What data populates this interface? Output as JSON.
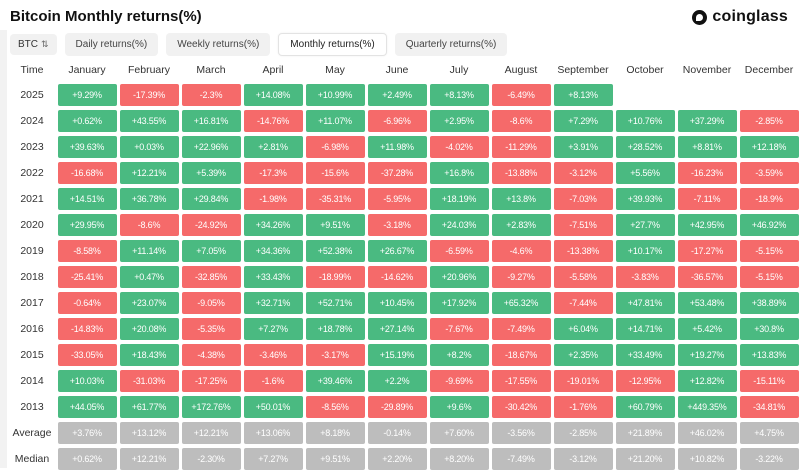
{
  "header": {
    "title": "Bitcoin Monthly returns(%)",
    "brand": "coinglass"
  },
  "toolbar": {
    "coin_selector": {
      "label": "BTC",
      "sort_icon": "swap-vertical-icon"
    },
    "tabs": [
      {
        "label": "Daily returns(%)",
        "active": false
      },
      {
        "label": "Weekly returns(%)",
        "active": false
      },
      {
        "label": "Monthly returns(%)",
        "active": true
      },
      {
        "label": "Quarterly returns(%)",
        "active": false
      }
    ]
  },
  "chart_data": {
    "type": "heatmap",
    "title": "Bitcoin Monthly returns(%)",
    "columns": [
      "Time",
      "January",
      "February",
      "March",
      "April",
      "May",
      "June",
      "July",
      "August",
      "September",
      "October",
      "November",
      "December"
    ],
    "colors": {
      "positive": "#4aba81",
      "negative": "#f56a6a",
      "summary": "#bdbdbd"
    },
    "rows": [
      {
        "label": "2025",
        "summary": false,
        "values": [
          "+9.29%",
          "-17.39%",
          "-2.3%",
          "+14.08%",
          "+10.99%",
          "+2.49%",
          "+8.13%",
          "-6.49%",
          "+8.13%",
          "",
          "",
          ""
        ]
      },
      {
        "label": "2024",
        "summary": false,
        "values": [
          "+0.62%",
          "+43.55%",
          "+16.81%",
          "-14.76%",
          "+11.07%",
          "-6.96%",
          "+2.95%",
          "-8.6%",
          "+7.29%",
          "+10.76%",
          "+37.29%",
          "-2.85%"
        ]
      },
      {
        "label": "2023",
        "summary": false,
        "values": [
          "+39.63%",
          "+0.03%",
          "+22.96%",
          "+2.81%",
          "-6.98%",
          "+11.98%",
          "-4.02%",
          "-11.29%",
          "+3.91%",
          "+28.52%",
          "+8.81%",
          "+12.18%"
        ]
      },
      {
        "label": "2022",
        "summary": false,
        "values": [
          "-16.68%",
          "+12.21%",
          "+5.39%",
          "-17.3%",
          "-15.6%",
          "-37.28%",
          "+16.8%",
          "-13.88%",
          "-3.12%",
          "+5.56%",
          "-16.23%",
          "-3.59%"
        ]
      },
      {
        "label": "2021",
        "summary": false,
        "values": [
          "+14.51%",
          "+36.78%",
          "+29.84%",
          "-1.98%",
          "-35.31%",
          "-5.95%",
          "+18.19%",
          "+13.8%",
          "-7.03%",
          "+39.93%",
          "-7.11%",
          "-18.9%"
        ]
      },
      {
        "label": "2020",
        "summary": false,
        "values": [
          "+29.95%",
          "-8.6%",
          "-24.92%",
          "+34.26%",
          "+9.51%",
          "-3.18%",
          "+24.03%",
          "+2.83%",
          "-7.51%",
          "+27.7%",
          "+42.95%",
          "+46.92%"
        ]
      },
      {
        "label": "2019",
        "summary": false,
        "values": [
          "-8.58%",
          "+11.14%",
          "+7.05%",
          "+34.36%",
          "+52.38%",
          "+26.67%",
          "-6.59%",
          "-4.6%",
          "-13.38%",
          "+10.17%",
          "-17.27%",
          "-5.15%"
        ]
      },
      {
        "label": "2018",
        "summary": false,
        "values": [
          "-25.41%",
          "+0.47%",
          "-32.85%",
          "+33.43%",
          "-18.99%",
          "-14.62%",
          "+20.96%",
          "-9.27%",
          "-5.58%",
          "-3.83%",
          "-36.57%",
          "-5.15%"
        ]
      },
      {
        "label": "2017",
        "summary": false,
        "values": [
          "-0.64%",
          "+23.07%",
          "-9.05%",
          "+32.71%",
          "+52.71%",
          "+10.45%",
          "+17.92%",
          "+65.32%",
          "-7.44%",
          "+47.81%",
          "+53.48%",
          "+38.89%"
        ]
      },
      {
        "label": "2016",
        "summary": false,
        "values": [
          "-14.83%",
          "+20.08%",
          "-5.35%",
          "+7.27%",
          "+18.78%",
          "+27.14%",
          "-7.67%",
          "-7.49%",
          "+6.04%",
          "+14.71%",
          "+5.42%",
          "+30.8%"
        ]
      },
      {
        "label": "2015",
        "summary": false,
        "values": [
          "-33.05%",
          "+18.43%",
          "-4.38%",
          "-3.46%",
          "-3.17%",
          "+15.19%",
          "+8.2%",
          "-18.67%",
          "+2.35%",
          "+33.49%",
          "+19.27%",
          "+13.83%"
        ]
      },
      {
        "label": "2014",
        "summary": false,
        "values": [
          "+10.03%",
          "-31.03%",
          "-17.25%",
          "-1.6%",
          "+39.46%",
          "+2.2%",
          "-9.69%",
          "-17.55%",
          "-19.01%",
          "-12.95%",
          "+12.82%",
          "-15.11%"
        ]
      },
      {
        "label": "2013",
        "summary": false,
        "values": [
          "+44.05%",
          "+61.77%",
          "+172.76%",
          "+50.01%",
          "-8.56%",
          "-29.89%",
          "+9.6%",
          "-30.42%",
          "-1.76%",
          "+60.79%",
          "+449.35%",
          "-34.81%"
        ]
      },
      {
        "label": "Average",
        "summary": true,
        "values": [
          "+3.76%",
          "+13.12%",
          "+12.21%",
          "+13.06%",
          "+8.18%",
          "-0.14%",
          "+7.60%",
          "-3.56%",
          "-2.85%",
          "+21.89%",
          "+46.02%",
          "+4.75%"
        ]
      },
      {
        "label": "Median",
        "summary": true,
        "values": [
          "+0.62%",
          "+12.21%",
          "-2.30%",
          "+7.27%",
          "+9.51%",
          "+2.20%",
          "+8.20%",
          "-7.49%",
          "-3.12%",
          "+21.20%",
          "+10.82%",
          "-3.22%"
        ]
      }
    ]
  }
}
